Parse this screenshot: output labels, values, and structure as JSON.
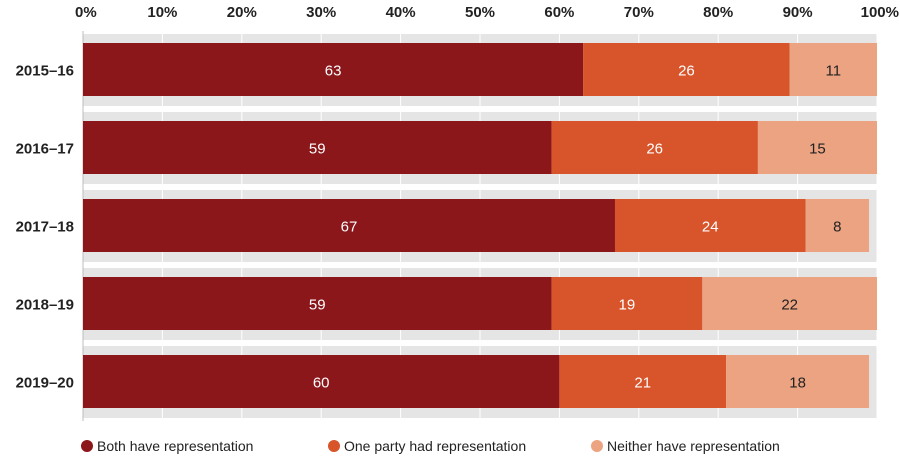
{
  "chart_data": {
    "type": "bar",
    "orientation": "horizontal",
    "stacked": true,
    "categories": [
      "2015–16",
      "2016–17",
      "2017–18",
      "2018–19",
      "2019–20"
    ],
    "series": [
      {
        "name": "Both have representation",
        "values": [
          63,
          59,
          67,
          59,
          60
        ],
        "color": "#8b171b",
        "label_color": "#ffffff"
      },
      {
        "name": "One party had representation",
        "values": [
          26,
          26,
          24,
          19,
          21
        ],
        "color": "#d8542a",
        "label_color": "#ffffff"
      },
      {
        "name": "Neither have representation",
        "values": [
          11,
          15,
          8,
          22,
          18
        ],
        "color": "#eba382",
        "label_color": "#222222"
      }
    ],
    "xlim": [
      0,
      100
    ],
    "x_ticks": [
      "0%",
      "10%",
      "20%",
      "30%",
      "40%",
      "50%",
      "60%",
      "70%",
      "80%",
      "90%",
      "100%"
    ],
    "x_axis_position": "top",
    "grid": true,
    "legend_position": "bottom",
    "title": "",
    "xlabel": "",
    "ylabel": ""
  }
}
